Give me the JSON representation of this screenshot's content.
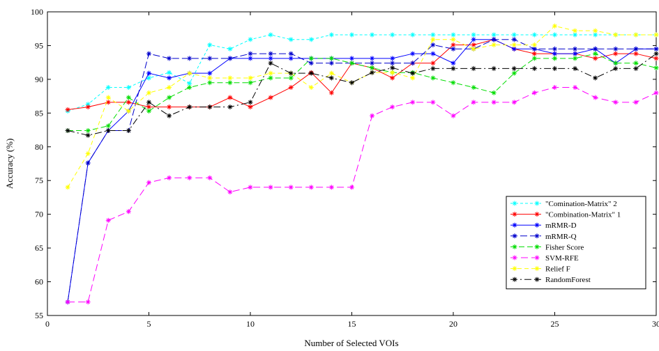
{
  "chart_data": {
    "type": "line",
    "title": "",
    "xlabel": "Number of Selected VOIs",
    "ylabel": "Accuracy (%)",
    "xlim": [
      0,
      30
    ],
    "ylim": [
      55,
      100
    ],
    "xticks": [
      0,
      5,
      10,
      15,
      20,
      25,
      30
    ],
    "yticks": [
      55,
      60,
      65,
      70,
      75,
      80,
      85,
      90,
      95,
      100
    ],
    "grid": false,
    "legend_position": "bottom-right",
    "x": [
      1,
      2,
      3,
      4,
      5,
      6,
      7,
      8,
      9,
      10,
      11,
      12,
      13,
      14,
      15,
      16,
      17,
      18,
      19,
      20,
      21,
      22,
      23,
      24,
      25,
      26,
      27,
      28,
      29,
      30
    ],
    "series": [
      {
        "name": "\"Comination-Matrix\" 2",
        "color": "#00ffff",
        "dash": "4 3",
        "values": [
          85.3,
          86.3,
          88.8,
          88.8,
          90.2,
          91.0,
          89.4,
          95.1,
          94.5,
          95.9,
          96.6,
          95.9,
          95.9,
          96.6,
          96.6,
          96.6,
          96.6,
          96.6,
          96.6,
          96.6,
          96.6,
          96.6,
          96.6,
          96.6,
          96.6,
          96.6,
          96.6,
          96.6,
          96.6,
          96.6
        ]
      },
      {
        "name": "\"Combination-Matrix\" 1",
        "color": "#ff0000",
        "dash": "",
        "values": [
          85.5,
          85.9,
          86.6,
          86.6,
          85.9,
          85.9,
          85.9,
          85.9,
          87.3,
          85.9,
          87.3,
          88.8,
          91.0,
          88.0,
          92.4,
          91.7,
          90.2,
          92.4,
          92.4,
          95.1,
          95.1,
          95.9,
          94.5,
          93.8,
          93.8,
          93.8,
          93.1,
          93.8,
          93.8,
          93.1
        ]
      },
      {
        "name": "mRMR-D",
        "color": "#0000ff",
        "dash": "",
        "values": [
          57.0,
          77.6,
          82.4,
          85.3,
          90.9,
          90.2,
          90.9,
          90.9,
          93.1,
          93.1,
          93.1,
          93.1,
          93.1,
          93.1,
          93.1,
          93.1,
          93.1,
          93.8,
          93.8,
          92.4,
          95.9,
          95.9,
          94.5,
          94.5,
          93.8,
          93.8,
          94.5,
          92.4,
          94.5,
          94.5
        ]
      },
      {
        "name": "mRMR-Q",
        "color": "#0000cc",
        "dash": "10 4",
        "values": [
          57.0,
          77.6,
          82.4,
          82.4,
          93.8,
          93.1,
          93.1,
          93.1,
          93.1,
          93.8,
          93.8,
          93.8,
          92.4,
          92.4,
          92.4,
          92.4,
          92.4,
          92.4,
          95.1,
          94.5,
          94.5,
          95.9,
          95.9,
          94.5,
          94.5,
          94.5,
          94.5,
          94.5,
          94.5,
          94.5
        ]
      },
      {
        "name": "Fisher Score",
        "color": "#00dd00",
        "dash": "8 4",
        "values": [
          82.4,
          82.4,
          83.1,
          87.3,
          85.3,
          87.3,
          88.8,
          89.5,
          89.5,
          89.5,
          90.2,
          90.2,
          93.1,
          93.1,
          92.4,
          91.7,
          91.0,
          91.0,
          90.2,
          89.5,
          88.8,
          88.0,
          90.9,
          93.1,
          93.1,
          93.1,
          93.8,
          92.4,
          92.4,
          91.7
        ]
      },
      {
        "name": "SVM-RFE",
        "color": "#ff00ff",
        "dash": "10 5",
        "values": [
          57.0,
          57.0,
          69.1,
          70.4,
          74.7,
          75.4,
          75.4,
          75.4,
          73.3,
          74.0,
          74.0,
          74.0,
          74.0,
          74.0,
          74.0,
          84.6,
          85.9,
          86.6,
          86.6,
          84.6,
          86.6,
          86.6,
          86.6,
          88.0,
          88.8,
          88.8,
          87.3,
          86.6,
          86.6,
          88.0
        ]
      },
      {
        "name": "Relief F",
        "color": "#ffff00",
        "dash": "6 4",
        "values": [
          74.0,
          79.0,
          87.3,
          85.3,
          88.0,
          88.8,
          90.9,
          90.2,
          90.2,
          90.2,
          90.9,
          90.9,
          88.8,
          90.9,
          89.5,
          91.0,
          91.0,
          90.2,
          95.9,
          95.9,
          94.5,
          95.1,
          95.1,
          95.1,
          97.9,
          97.2,
          97.2,
          96.6,
          96.6,
          96.6
        ]
      },
      {
        "name": "RandomForest",
        "color": "#000000",
        "dash": "10 4 2 4",
        "values": [
          82.4,
          81.7,
          82.4,
          82.4,
          86.6,
          84.6,
          85.9,
          85.9,
          85.9,
          86.6,
          92.4,
          90.9,
          90.9,
          90.2,
          89.5,
          91.0,
          91.7,
          90.9,
          91.6,
          91.6,
          91.6,
          91.6,
          91.6,
          91.6,
          91.6,
          91.6,
          90.2,
          91.6,
          91.6,
          93.8
        ]
      }
    ]
  }
}
